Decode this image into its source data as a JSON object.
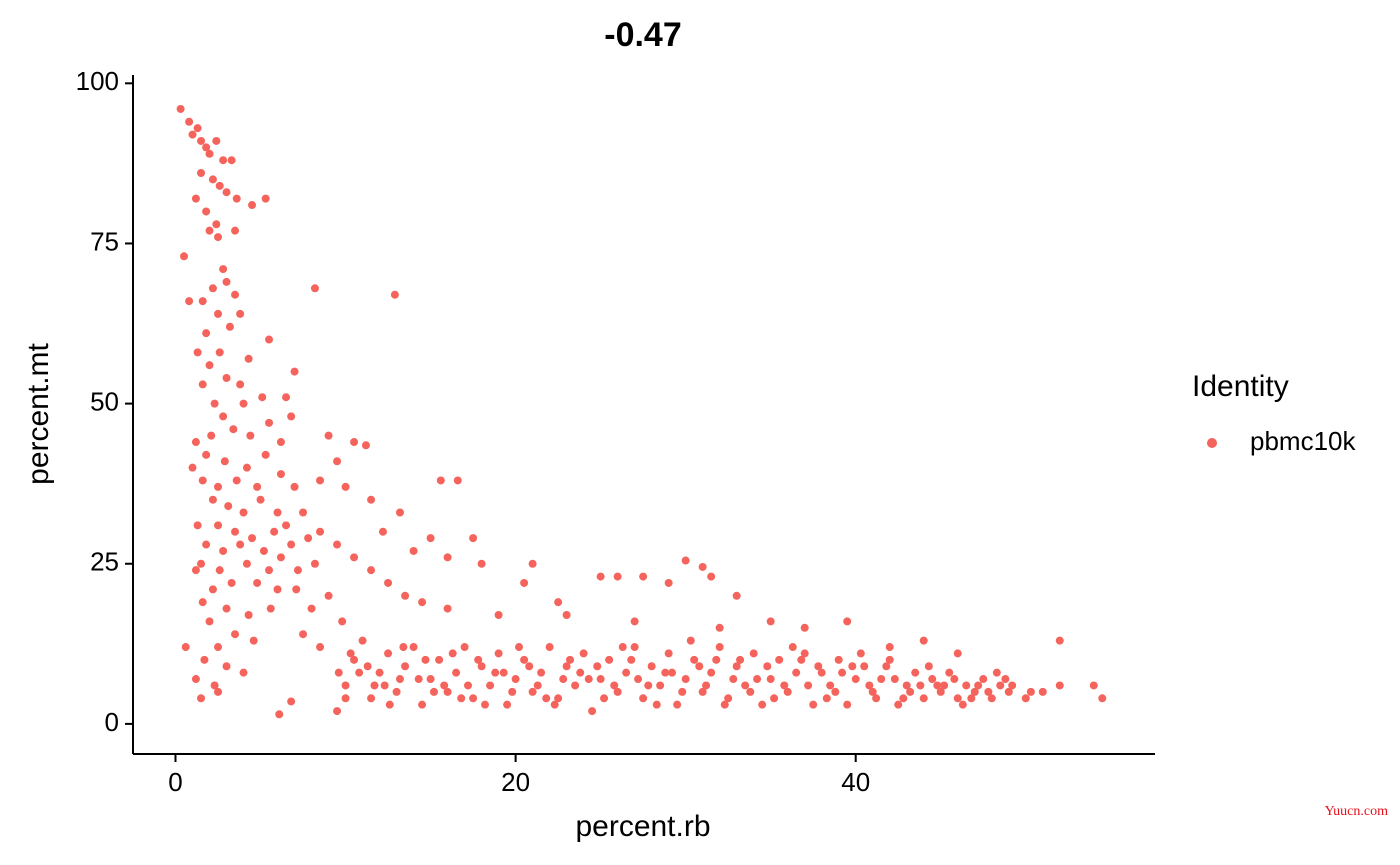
{
  "chart_data": {
    "type": "scatter",
    "title": "-0.47",
    "x_label": "percent.rb",
    "y_label": "percent.mt",
    "legend_title": "Identity",
    "watermark": "Yuucn.com",
    "xlim": [
      -2.5,
      57.6
    ],
    "ylim": [
      -4.7,
      101.3
    ],
    "xticks": [
      0,
      20,
      40
    ],
    "yticks": [
      0,
      25,
      50,
      75,
      100
    ],
    "grid": false,
    "legend": "right",
    "series": [
      {
        "name": "pbmc10k",
        "color": "#F4645C",
        "x": [
          0.3,
          0.8,
          1,
          1.3,
          1.5,
          1.8,
          2,
          2.4,
          2.8,
          3.3,
          1.5,
          2.2,
          2.6,
          3,
          3.6,
          4.5,
          5.3,
          1.2,
          1.8,
          2.4,
          2,
          3.5,
          2.5,
          0.5,
          2.8,
          2.2,
          3,
          3.5,
          1.6,
          0.8,
          2.5,
          3.8,
          3.2,
          1.8,
          2.6,
          1.3,
          4.3,
          5.5,
          2,
          3,
          3.8,
          1.6,
          2.3,
          4,
          5.1,
          2.8,
          1.2,
          2.1,
          3.4,
          4.4,
          5.5,
          6.5,
          7,
          6.8,
          1.8,
          2.9,
          4.2,
          5.3,
          6.2,
          1,
          1.6,
          2.5,
          3.6,
          4.8,
          6.2,
          7,
          2.2,
          3.1,
          4,
          5,
          6,
          1.3,
          2.5,
          3.5,
          4.5,
          5.8,
          6.5,
          7.5,
          1.8,
          2.8,
          3.8,
          5.2,
          6.8,
          7.8,
          1.5,
          2.6,
          4.2,
          5.5,
          6.2,
          7.2,
          8.2,
          1.2,
          2.2,
          3.3,
          4.8,
          6,
          7.1,
          1.6,
          3,
          4.3,
          5.6,
          2,
          3.5,
          4.6,
          2.5,
          0.6,
          1.7,
          3,
          4,
          1.2,
          2.3,
          1.5,
          2.5,
          6.1,
          6.8,
          8.2,
          12.9,
          8.5,
          9,
          10.5,
          11.2,
          9.5,
          10,
          11.5,
          13.2,
          12.2,
          15.6,
          16.6,
          15,
          17.5,
          14,
          16,
          18,
          21,
          20.5,
          22.5,
          25,
          26,
          27.5,
          30,
          31,
          29,
          31.5,
          33,
          35,
          37,
          39.5,
          42,
          44,
          46,
          52,
          8.5,
          9.5,
          10.5,
          11.5,
          12.5,
          13.5,
          14.5,
          16,
          19,
          23,
          27,
          32,
          9,
          8,
          9.8,
          7.5,
          8.5,
          9.6,
          10,
          9.5,
          10,
          10.5,
          11,
          11.5,
          12,
          12.5,
          13,
          13.5,
          14,
          14.5,
          15,
          15.5,
          16,
          16.5,
          17,
          17.5,
          18,
          18.5,
          19,
          19.5,
          20,
          20.5,
          21,
          21.5,
          22,
          22.5,
          23,
          23.5,
          24,
          24.5,
          25,
          25.5,
          26,
          26.5,
          27,
          27.5,
          28,
          28.5,
          29,
          29.5,
          30,
          30.5,
          31,
          31.5,
          32,
          32.5,
          33,
          33.5,
          34,
          34.5,
          35,
          35.5,
          36,
          36.5,
          37,
          37.5,
          38,
          38.5,
          39,
          39.5,
          40,
          40.5,
          41,
          41.5,
          42,
          42.5,
          43,
          43.5,
          44,
          44.5,
          45,
          45.5,
          46,
          46.5,
          47,
          47.5,
          48,
          48.5,
          49,
          50,
          51,
          52,
          54,
          54.5,
          10.8,
          11.7,
          12.6,
          13.4,
          14.3,
          15.2,
          16.3,
          17.2,
          18.2,
          19.3,
          20.2,
          21.3,
          22.3,
          23.2,
          24.3,
          25.2,
          26.3,
          27.2,
          28.3,
          29.2,
          30.3,
          31.2,
          32.3,
          33.2,
          34.2,
          35.2,
          36.3,
          37.2,
          38.3,
          39.2,
          40.3,
          41.2,
          42.3,
          43.2,
          44.3,
          45.2,
          46.3,
          47.2,
          48.3,
          49.2,
          50.3,
          10.3,
          11.3,
          12.3,
          13.2,
          14.7,
          15.8,
          16.8,
          17.8,
          18.8,
          19.8,
          20.8,
          21.8,
          22.8,
          23.8,
          24.8,
          25.8,
          26.8,
          27.8,
          28.8,
          29.8,
          30.8,
          31.8,
          32.8,
          33.8,
          34.8,
          35.8,
          36.8,
          37.8,
          38.8,
          39.8,
          40.8,
          41.8,
          42.8,
          43.8,
          44.8,
          45.8,
          46.8,
          47.8,
          48.8
        ],
        "values": [
          96,
          94,
          92,
          93,
          91,
          90,
          89,
          91,
          88,
          88,
          86,
          85,
          84,
          83,
          82,
          81,
          82,
          82,
          80,
          78,
          77,
          77,
          76,
          73,
          71,
          68,
          69,
          67,
          66,
          66,
          64,
          64,
          62,
          61,
          58,
          58,
          57,
          60,
          56,
          54,
          53,
          53,
          50,
          50,
          51,
          48,
          44,
          45,
          46,
          45,
          47,
          51,
          55,
          48,
          42,
          41,
          40,
          42,
          44,
          40,
          38,
          37,
          38,
          37,
          39,
          37,
          35,
          34,
          33,
          35,
          33,
          31,
          31,
          30,
          29,
          30,
          31,
          33,
          28,
          27,
          28,
          27,
          28,
          29,
          25,
          24,
          25,
          24,
          26,
          24,
          25,
          24,
          21,
          22,
          22,
          21,
          21,
          19,
          18,
          17,
          18,
          16,
          14,
          13,
          12,
          12,
          10,
          9,
          8,
          7,
          6,
          4,
          5,
          1.5,
          3.5,
          68,
          67,
          38,
          45,
          44,
          43.5,
          41,
          37,
          35,
          33,
          30,
          38,
          38,
          29,
          29,
          27,
          26,
          25,
          25,
          22,
          19,
          23,
          23,
          23,
          25.5,
          24.5,
          22,
          23,
          20,
          16,
          15,
          16,
          12,
          13,
          11,
          13,
          30,
          28,
          26,
          24,
          22,
          20,
          19,
          18,
          17,
          17,
          16,
          15,
          20,
          18,
          16,
          14,
          12,
          8,
          4,
          2,
          6,
          10,
          13,
          4,
          8,
          11,
          5,
          9,
          12,
          3,
          7,
          10,
          5,
          8,
          12,
          4,
          9,
          6,
          11,
          3,
          7,
          10,
          5,
          8,
          12,
          4,
          9,
          6,
          11,
          2,
          7,
          10,
          5,
          8,
          12,
          4,
          9,
          6,
          11,
          3,
          7,
          10,
          5,
          8,
          12,
          4,
          9,
          6,
          11,
          3,
          7,
          10,
          5,
          8,
          11,
          3,
          8,
          6,
          10,
          3,
          7,
          9,
          5,
          7,
          10,
          3,
          6,
          8,
          4,
          7,
          5,
          8,
          4,
          6,
          5,
          7,
          4,
          6,
          5,
          4,
          5,
          6,
          6,
          4,
          8,
          6,
          3,
          12,
          7,
          5,
          11,
          6,
          3,
          8,
          12,
          6,
          3,
          10,
          7,
          4,
          12,
          7,
          3,
          8,
          13,
          6,
          3,
          10,
          7,
          4,
          12,
          6,
          4,
          8,
          11,
          4,
          7,
          5,
          9,
          6,
          3,
          6,
          8,
          6,
          5,
          11,
          9,
          6,
          7,
          10,
          6,
          4,
          10,
          8,
          5,
          9,
          4,
          7,
          8,
          9,
          6,
          10,
          6,
          8,
          5,
          9,
          10,
          7,
          5,
          9,
          6,
          10,
          9,
          5,
          9,
          6,
          9,
          4,
          6,
          6,
          7,
          4,
          5,
          7
        ]
      }
    ]
  }
}
